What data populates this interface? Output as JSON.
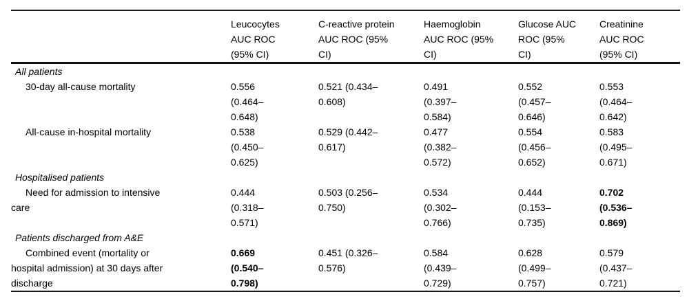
{
  "page": {
    "background": "#ffffff",
    "text_color": "#000000",
    "rule_color": "#111111"
  },
  "table": {
    "header": {
      "stub": "",
      "columns": [
        {
          "title": "Leucocytes AUC ROC (95% CI)",
          "lines": [
            "Leucocytes",
            "AUC ROC",
            "(95% CI)"
          ]
        },
        {
          "title": "C-reactive protein AUC ROC (95% CI)",
          "lines": [
            "C-reactive protein",
            "AUC ROC (95%",
            "CI)"
          ]
        },
        {
          "title": "Haemoglobin AUC ROC (95% CI)",
          "lines": [
            "Haemoglobin",
            "AUC ROC (95%",
            "CI)"
          ]
        },
        {
          "title": "Glucose AUC ROC (95% CI)",
          "lines": [
            "Glucose AUC",
            "ROC (95%",
            "CI)"
          ]
        },
        {
          "title": "Creatinine AUC ROC (95% CI)",
          "lines": [
            "Creatinine",
            "AUC ROC",
            "(95% CI)"
          ]
        }
      ]
    },
    "sections": [
      {
        "header": "All patients",
        "rows": [
          {
            "label": "30-day all-cause mortality",
            "label_lines": [
              "30-day all-cause mortality"
            ],
            "cells": [
              {
                "value": "0.556 (0.464–0.648)",
                "lines": [
                  "0.556",
                  "(0.464–",
                  "0.648)"
                ],
                "bold": false
              },
              {
                "value": "0.521 (0.434–0.608)",
                "lines": [
                  "0.521 (0.434–",
                  "0.608)"
                ],
                "bold": false
              },
              {
                "value": "0.491 (0.397–0.584)",
                "lines": [
                  "0.491",
                  "(0.397–",
                  "0.584)"
                ],
                "bold": false
              },
              {
                "value": "0.552 (0.457–0.646)",
                "lines": [
                  "0.552",
                  "(0.457–",
                  "0.646)"
                ],
                "bold": false
              },
              {
                "value": "0.553 (0.464–0.642)",
                "lines": [
                  "0.553",
                  "(0.464–",
                  "0.642)"
                ],
                "bold": false
              }
            ]
          },
          {
            "label": "All-cause in-hospital mortality",
            "label_lines": [
              "All-cause in-hospital mortality"
            ],
            "cells": [
              {
                "value": "0.538 (0.450–0.625)",
                "lines": [
                  "0.538",
                  "(0.450–",
                  "0.625)"
                ],
                "bold": false
              },
              {
                "value": "0.529 (0.442–0.617)",
                "lines": [
                  "0.529 (0.442–",
                  "0.617)"
                ],
                "bold": false
              },
              {
                "value": "0.477 (0.382–0.572)",
                "lines": [
                  "0.477",
                  "(0.382–",
                  "0.572)"
                ],
                "bold": false
              },
              {
                "value": "0.554 (0.456–0.652)",
                "lines": [
                  "0.554",
                  "(0.456–",
                  "0.652)"
                ],
                "bold": false
              },
              {
                "value": "0.583 (0.495–0.671)",
                "lines": [
                  "0.583",
                  "(0.495–",
                  "0.671)"
                ],
                "bold": false
              }
            ]
          }
        ]
      },
      {
        "header": "Hospitalised patients",
        "rows": [
          {
            "label": "Need for admission to intensive care",
            "label_lines": [
              "Need for admission to intensive",
              "care"
            ],
            "cells": [
              {
                "value": "0.444 (0.318–0.571)",
                "lines": [
                  "0.444",
                  "(0.318–",
                  "0.571)"
                ],
                "bold": false
              },
              {
                "value": "0.503 (0.256–0.750)",
                "lines": [
                  "0.503 (0.256–",
                  "0.750)"
                ],
                "bold": false
              },
              {
                "value": "0.534 (0.302–0.766)",
                "lines": [
                  "0.534",
                  "(0.302–",
                  "0.766)"
                ],
                "bold": false
              },
              {
                "value": "0.444 (0.153–0.735)",
                "lines": [
                  "0.444",
                  "(0.153–",
                  "0.735)"
                ],
                "bold": false
              },
              {
                "value": "0.702 (0.536–0.869)",
                "lines": [
                  "0.702",
                  "(0.536–",
                  "0.869)"
                ],
                "bold": true
              }
            ]
          }
        ]
      },
      {
        "header": "Patients discharged from A&E",
        "rows": [
          {
            "label": "Combined event (mortality or hospital admission) at 30 days after discharge",
            "label_lines": [
              "Combined event (mortality or",
              "hospital admission) at 30 days after",
              "discharge"
            ],
            "cells": [
              {
                "value": "0.669 (0.540–0.798)",
                "lines": [
                  "0.669",
                  "(0.540–",
                  "0.798)"
                ],
                "bold": true
              },
              {
                "value": "0.451 (0.326–0.576)",
                "lines": [
                  "0.451 (0.326–",
                  "0.576)"
                ],
                "bold": false
              },
              {
                "value": "0.584 (0.439–0.729)",
                "lines": [
                  "0.584",
                  "(0.439–",
                  "0.729)"
                ],
                "bold": false
              },
              {
                "value": "0.628 (0.499–0.757)",
                "lines": [
                  "0.628",
                  "(0.499–",
                  "0.757)"
                ],
                "bold": false
              },
              {
                "value": "0.579 (0.437–0.721)",
                "lines": [
                  "0.579",
                  "(0.437–",
                  "0.721)"
                ],
                "bold": false
              }
            ]
          }
        ]
      }
    ]
  }
}
